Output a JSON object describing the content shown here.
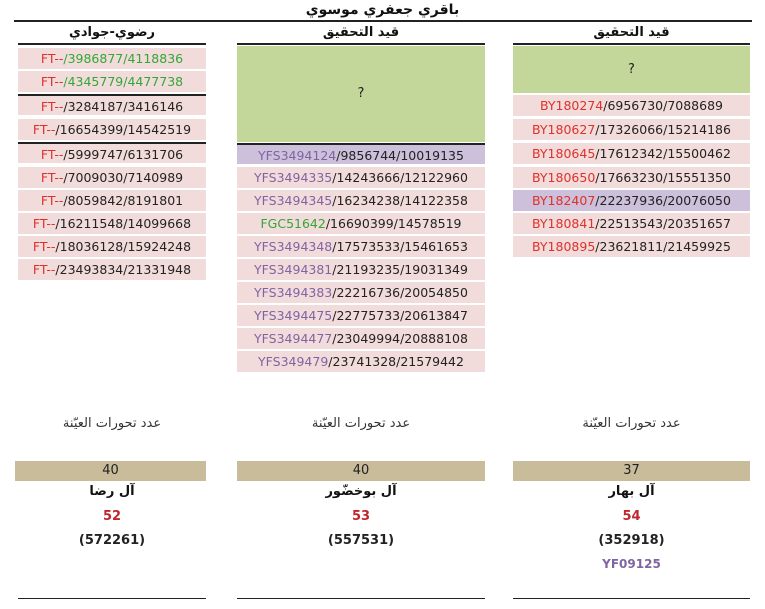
{
  "title": "باقري جعفري موسوي",
  "columns": {
    "left": {
      "header": "رضوي-جوادي",
      "rows": [
        {
          "prefix": "FT--",
          "rest": "/3986877/4118836"
        },
        {
          "prefix": "FT--",
          "rest": "/4345779/4477738"
        },
        {
          "prefix": "FT--",
          "rest": "/3284187/3416146"
        },
        {
          "prefix": "FT--",
          "rest": "/16654399/14542519"
        },
        {
          "prefix": "FT--",
          "rest": "/5999747/6131706"
        },
        {
          "prefix": "FT--",
          "rest": "/7009030/7140989"
        },
        {
          "prefix": "FT--",
          "rest": "/8059842/8191801"
        },
        {
          "prefix": "FT--",
          "rest": "/16211548/14099668"
        },
        {
          "prefix": "FT--",
          "rest": "/18036128/15924248"
        },
        {
          "prefix": "FT--",
          "rest": "/23493834/21331948"
        }
      ],
      "count_label": "عدد تحورات العيّنة",
      "count": "40",
      "family": "آل رضا",
      "number": "52",
      "paren": "(572261)"
    },
    "middle": {
      "header": "قيد التحقيق",
      "pending": "?",
      "rows": [
        {
          "prefix": "YFS3494124",
          "rest": "/9856744/10019135"
        },
        {
          "prefix": "YFS3494335",
          "rest": "/14243666/12122960"
        },
        {
          "prefix": "YFS3494345",
          "rest": "/16234238/14122358"
        },
        {
          "prefix": "FGC51642",
          "rest": "/16690399/14578519"
        },
        {
          "prefix": "YFS3494348",
          "rest": "/17573533/15461653"
        },
        {
          "prefix": "YFS3494381",
          "rest": "/21193235/19031349"
        },
        {
          "prefix": "YFS3494383",
          "rest": "/22216736/20054850"
        },
        {
          "prefix": "YFS3494475",
          "rest": "/22775733/20613847"
        },
        {
          "prefix": "YFS3494477",
          "rest": "/23049994/20888108"
        },
        {
          "prefix": "YFS349479",
          "rest": "/23741328/21579442"
        }
      ],
      "count_label": "عدد تحورات العيّنة",
      "count": "40",
      "family": "آل بوخضّور",
      "number": "53",
      "paren": "(557531)"
    },
    "right": {
      "header": "قيد التحقيق",
      "pending": "?",
      "rows": [
        {
          "prefix": "BY180274",
          "rest": "/6956730/7088689"
        },
        {
          "prefix": "BY180627",
          "rest": "/17326066/15214186"
        },
        {
          "prefix": "BY180645",
          "rest": "/17612342/15500462"
        },
        {
          "prefix": "BY180650",
          "rest": "/17663230/15551350"
        },
        {
          "prefix": "BY182407",
          "rest": "/22237936/20076050"
        },
        {
          "prefix": "BY180841",
          "rest": "/22513543/20351657"
        },
        {
          "prefix": "BY180895",
          "rest": "/23621811/21459925"
        }
      ],
      "count_label": "عدد تحورات العيّنة",
      "count": "37",
      "family": "آل بهار",
      "number": "54",
      "paren": "(352918)",
      "extra": "YF09125"
    }
  },
  "colors": {
    "pink": "#f2dcdb",
    "lavender": "#ccc0da",
    "olive_green": "#c4d79b",
    "tan": "#c9bc9b",
    "red": "#e0302a",
    "purple": "#8064a2",
    "green": "#33a637"
  }
}
